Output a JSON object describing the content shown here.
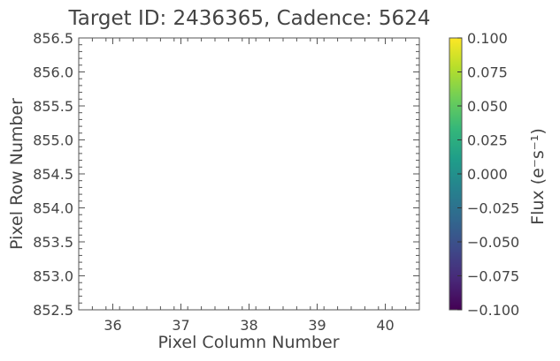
{
  "chart_data": {
    "type": "heatmap",
    "title": "Target ID: 2436365, Cadence: 5624",
    "xlabel": "Pixel Column Number",
    "ylabel": "Pixel Row Number",
    "xlim": [
      35.5,
      40.5
    ],
    "ylim": [
      852.5,
      856.5
    ],
    "x_ticks": [
      "36",
      "37",
      "38",
      "39",
      "40"
    ],
    "y_ticks": [
      "852.5",
      "853.0",
      "853.5",
      "854.0",
      "854.5",
      "855.0",
      "855.5",
      "856.0",
      "856.5"
    ],
    "grid": false,
    "values": [],
    "colorbar": {
      "label": "Flux (e⁻s⁻¹)",
      "colormap": "viridis",
      "range": [
        -0.1,
        0.1
      ],
      "ticks": [
        "0.100",
        "0.075",
        "0.050",
        "0.025",
        "0.000",
        "−0.025",
        "−0.050",
        "−0.075",
        "−0.100"
      ],
      "colors": [
        "#440154",
        "#482878",
        "#3e4989",
        "#31688e",
        "#26828e",
        "#1f9e89",
        "#35b779",
        "#6ece58",
        "#b5de2b",
        "#fde725"
      ]
    }
  }
}
